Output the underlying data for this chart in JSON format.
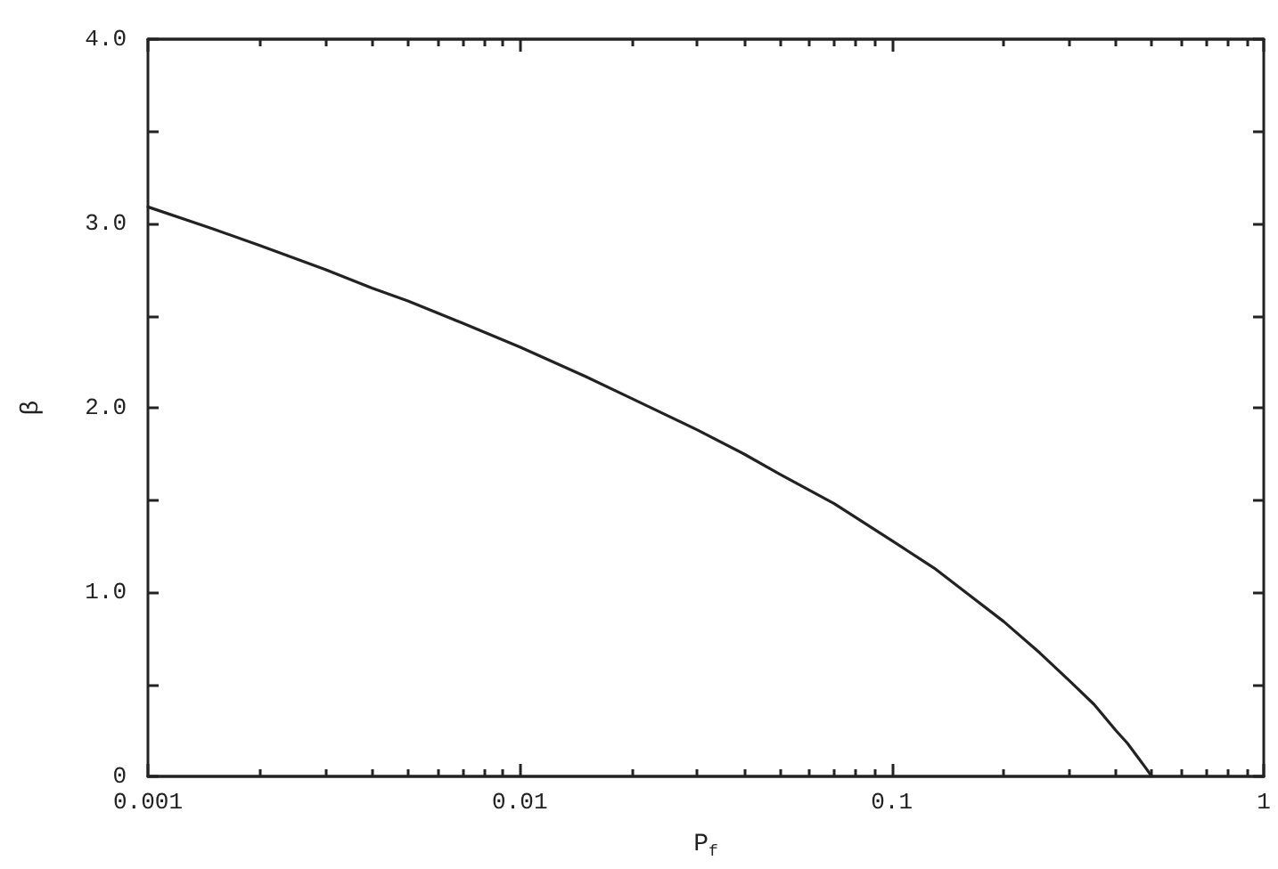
{
  "chart_data": {
    "type": "line",
    "xlabel": "P$_{f}$",
    "ylabel": "β",
    "x": [
      0.001,
      0.0015,
      0.002,
      0.003,
      0.004,
      0.005,
      0.007,
      0.01,
      0.015,
      0.02,
      0.03,
      0.04,
      0.05,
      0.07,
      0.1,
      0.13,
      0.16,
      0.2,
      0.25,
      0.3,
      0.35,
      0.4,
      0.43,
      0.46,
      0.48,
      0.5
    ],
    "series": [
      {
        "color": "#222222",
        "values": [
          3.09,
          2.97,
          2.88,
          2.75,
          2.65,
          2.58,
          2.46,
          2.33,
          2.17,
          2.05,
          1.88,
          1.75,
          1.64,
          1.48,
          1.28,
          1.13,
          0.99,
          0.84,
          0.67,
          0.52,
          0.39,
          0.25,
          0.18,
          0.1,
          0.05,
          0
        ]
      }
    ],
    "xlim": [
      0.001,
      1
    ],
    "ylim": [
      0,
      4
    ],
    "log": "x",
    "marker": "none",
    "xticks": [
      0.001,
      {
        "value": 0.002,
        "label": null
      },
      {
        "value": 0.003,
        "label": null
      },
      {
        "value": 0.004,
        "label": null
      },
      {
        "value": 0.005,
        "label": null
      },
      {
        "value": 0.006,
        "label": null
      },
      {
        "value": 0.007,
        "label": null
      },
      {
        "value": 0.008,
        "label": null
      },
      {
        "value": 0.009,
        "label": null
      },
      0.01,
      {
        "value": 0.02,
        "label": null
      },
      {
        "value": 0.03,
        "label": null
      },
      {
        "value": 0.04,
        "label": null
      },
      {
        "value": 0.05,
        "label": null
      },
      {
        "value": 0.06,
        "label": null
      },
      {
        "value": 0.07,
        "label": null
      },
      {
        "value": 0.08,
        "label": null
      },
      {
        "value": 0.09,
        "label": null
      },
      0.1,
      {
        "value": 0.2,
        "label": null
      },
      {
        "value": 0.3,
        "label": null
      },
      {
        "value": 0.4,
        "label": null
      },
      {
        "value": 0.5,
        "label": null
      },
      {
        "value": 0.6,
        "label": null
      },
      {
        "value": 0.7,
        "label": null
      },
      {
        "value": 0.8,
        "label": null
      },
      {
        "value": 0.9,
        "label": null
      },
      1
    ],
    "yticks": [
      0,
      {
        "value": 0.5,
        "label": null
      },
      {
        "value": 1,
        "label": "1.0"
      },
      {
        "value": 1.5,
        "label": null
      },
      {
        "value": 2,
        "label": "2.0"
      },
      {
        "value": 2.5,
        "label": null
      },
      {
        "value": 3,
        "label": "3.0"
      },
      {
        "value": 3.5,
        "label": null
      },
      {
        "value": 4,
        "label": "4.0"
      }
    ]
  }
}
